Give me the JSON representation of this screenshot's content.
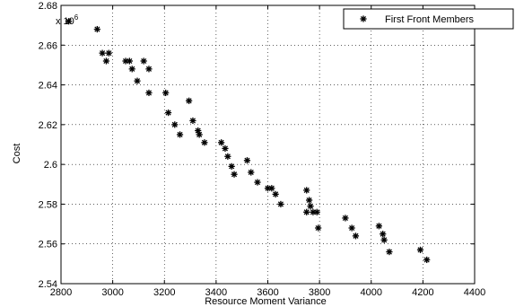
{
  "chart_data": {
    "type": "scatter",
    "title": "",
    "xlabel": "Resource Moment Variance",
    "ylabel": "Cost",
    "y_multiplier_label": "x 10",
    "y_multiplier_exponent": "6",
    "xlim": [
      2800,
      4400
    ],
    "ylim": [
      2.54,
      2.68
    ],
    "x_ticks": [
      "2800",
      "3000",
      "3200",
      "3400",
      "3600",
      "3800",
      "4000",
      "4200",
      "4400"
    ],
    "y_ticks": [
      "2.54",
      "2.56",
      "2.58",
      "2.6",
      "2.62",
      "2.64",
      "2.66",
      "2.68"
    ],
    "grid": true,
    "legend_position": "top-right",
    "marker": "*",
    "series": [
      {
        "name": "First Front Members",
        "points": [
          [
            2830,
            2.672
          ],
          [
            2940,
            2.668
          ],
          [
            2960,
            2.656
          ],
          [
            2985,
            2.656
          ],
          [
            2975,
            2.652
          ],
          [
            3050,
            2.652
          ],
          [
            3065,
            2.652
          ],
          [
            3075,
            2.648
          ],
          [
            3095,
            2.642
          ],
          [
            3120,
            2.652
          ],
          [
            3140,
            2.648
          ],
          [
            3140,
            2.636
          ],
          [
            3205,
            2.636
          ],
          [
            3215,
            2.626
          ],
          [
            3240,
            2.62
          ],
          [
            3260,
            2.615
          ],
          [
            3295,
            2.632
          ],
          [
            3310,
            2.622
          ],
          [
            3330,
            2.617
          ],
          [
            3335,
            2.615
          ],
          [
            3355,
            2.611
          ],
          [
            3420,
            2.611
          ],
          [
            3435,
            2.608
          ],
          [
            3445,
            2.604
          ],
          [
            3460,
            2.599
          ],
          [
            3470,
            2.595
          ],
          [
            3520,
            2.602
          ],
          [
            3535,
            2.596
          ],
          [
            3560,
            2.591
          ],
          [
            3600,
            2.588
          ],
          [
            3615,
            2.588
          ],
          [
            3630,
            2.585
          ],
          [
            3650,
            2.58
          ],
          [
            3750,
            2.587
          ],
          [
            3760,
            2.582
          ],
          [
            3765,
            2.579
          ],
          [
            3750,
            2.576
          ],
          [
            3775,
            2.576
          ],
          [
            3790,
            2.576
          ],
          [
            3795,
            2.568
          ],
          [
            3900,
            2.573
          ],
          [
            3925,
            2.568
          ],
          [
            3940,
            2.564
          ],
          [
            4030,
            2.569
          ],
          [
            4045,
            2.565
          ],
          [
            4050,
            2.562
          ],
          [
            4070,
            2.556
          ],
          [
            4190,
            2.557
          ],
          [
            4215,
            2.552
          ]
        ]
      }
    ]
  }
}
